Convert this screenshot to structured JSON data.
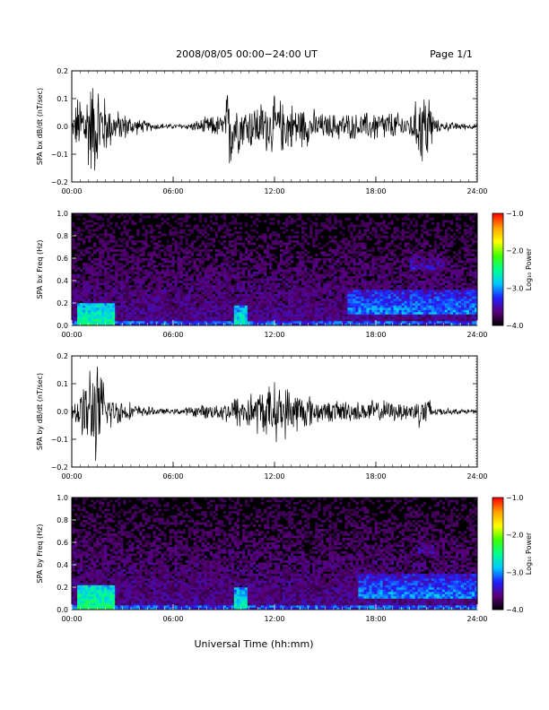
{
  "header": {
    "title": "2008/08/05  00:00−24:00 UT",
    "page": "Page 1/1"
  },
  "footer": {
    "xlabel": "Universal Time (hh:mm)"
  },
  "colorbar": {
    "label": "Log₁₀ Power",
    "ticks": [
      "−1.0",
      "−2.0",
      "−3.0",
      "−4.0"
    ],
    "range": [
      -4.0,
      -1.0
    ],
    "colors": [
      "#000000",
      "#5a007a",
      "#2020ff",
      "#00c8ff",
      "#00ff90",
      "#40ff00",
      "#ffff00",
      "#ffa000",
      "#ff0000"
    ]
  },
  "chart_data": [
    {
      "type": "line",
      "name": "waveform-bx",
      "ylabel": "SPA bx dB/dt (nT/sec)",
      "xlim": [
        "00:00",
        "24:00"
      ],
      "ylim": [
        -0.2,
        0.2
      ],
      "xticks": [
        "00:00",
        "06:00",
        "12:00",
        "18:00",
        "24:00"
      ],
      "yticks": [
        "0.2",
        "0.1",
        "0.0",
        "−0.1",
        "−0.2"
      ],
      "amplitude_envelope": {
        "x_hours": [
          0,
          0.3,
          0.6,
          1.0,
          1.3,
          1.6,
          2.0,
          2.5,
          3.0,
          4.0,
          5.0,
          6.0,
          7.0,
          8.0,
          9.0,
          9.3,
          10.0,
          11.0,
          12.0,
          13.0,
          14.0,
          15.0,
          16.0,
          17.0,
          18.0,
          19.0,
          20.0,
          21.0,
          21.5,
          22.0,
          23.0,
          24.0
        ],
        "amplitude": [
          0.02,
          0.12,
          0.15,
          0.2,
          0.2,
          0.2,
          0.12,
          0.07,
          0.06,
          0.03,
          0.015,
          0.01,
          0.015,
          0.04,
          0.05,
          0.2,
          0.09,
          0.1,
          0.12,
          0.1,
          0.08,
          0.05,
          0.06,
          0.05,
          0.07,
          0.06,
          0.05,
          0.2,
          0.03,
          0.02,
          0.015,
          0.01
        ]
      }
    },
    {
      "type": "heatmap",
      "name": "spectrogram-bx",
      "ylabel": "SPA bx Freq (Hz)",
      "xlim": [
        "00:00",
        "24:00"
      ],
      "ylim": [
        0.0,
        1.0
      ],
      "xticks": [
        "00:00",
        "06:00",
        "12:00",
        "18:00",
        "24:00"
      ],
      "yticks": [
        "1.0",
        "0.8",
        "0.6",
        "0.4",
        "0.2",
        "0.0"
      ],
      "zlim": [
        -4.0,
        -1.0
      ],
      "features": [
        {
          "x_hours": [
            0.3,
            2.5
          ],
          "freq_hz": [
            0.0,
            0.2
          ],
          "log_power": -2.5
        },
        {
          "x_hours": [
            9.6,
            10.4
          ],
          "freq_hz": [
            0.0,
            0.18
          ],
          "log_power": -2.6
        },
        {
          "x_hours": [
            16.3,
            24.0
          ],
          "freq_hz": [
            0.1,
            0.32
          ],
          "log_power": -3.0
        },
        {
          "x_hours": [
            20.0,
            22.0
          ],
          "freq_hz": [
            0.5,
            0.65
          ],
          "log_power": -3.4
        }
      ]
    },
    {
      "type": "line",
      "name": "waveform-by",
      "ylabel": "SPA by dB/dt (nT/sec)",
      "xlim": [
        "00:00",
        "24:00"
      ],
      "ylim": [
        -0.2,
        0.2
      ],
      "xticks": [
        "00:00",
        "06:00",
        "12:00",
        "18:00",
        "24:00"
      ],
      "yticks": [
        "0.2",
        "0.1",
        "0.0",
        "−0.1",
        "−0.2"
      ],
      "amplitude_envelope": {
        "x_hours": [
          0,
          0.3,
          0.6,
          1.0,
          1.3,
          1.6,
          2.0,
          2.5,
          3.0,
          4.0,
          5.0,
          6.0,
          7.0,
          8.0,
          9.0,
          10.0,
          11.0,
          12.0,
          13.0,
          14.0,
          15.0,
          16.0,
          17.0,
          18.0,
          19.0,
          20.0,
          21.0,
          21.5,
          22.0,
          23.0,
          24.0
        ],
        "amplitude": [
          0.03,
          0.08,
          0.1,
          0.2,
          0.2,
          0.2,
          0.1,
          0.06,
          0.05,
          0.025,
          0.015,
          0.01,
          0.02,
          0.03,
          0.04,
          0.08,
          0.09,
          0.12,
          0.1,
          0.07,
          0.04,
          0.05,
          0.04,
          0.05,
          0.04,
          0.04,
          0.08,
          0.02,
          0.015,
          0.01,
          0.01
        ]
      }
    },
    {
      "type": "heatmap",
      "name": "spectrogram-by",
      "ylabel": "SPA by Freq (Hz)",
      "xlim": [
        "00:00",
        "24:00"
      ],
      "ylim": [
        0.0,
        1.0
      ],
      "xticks": [
        "00:00",
        "06:00",
        "12:00",
        "18:00",
        "24:00"
      ],
      "yticks": [
        "1.0",
        "0.8",
        "0.6",
        "0.4",
        "0.2",
        "0.0"
      ],
      "zlim": [
        -4.0,
        -1.0
      ],
      "features": [
        {
          "x_hours": [
            0.3,
            2.5
          ],
          "freq_hz": [
            0.0,
            0.22
          ],
          "log_power": -2.4
        },
        {
          "x_hours": [
            9.6,
            10.4
          ],
          "freq_hz": [
            0.0,
            0.2
          ],
          "log_power": -2.6
        },
        {
          "x_hours": [
            17.0,
            24.0
          ],
          "freq_hz": [
            0.1,
            0.32
          ],
          "log_power": -3.0
        },
        {
          "x_hours": [
            20.5,
            21.5
          ],
          "freq_hz": [
            0.5,
            0.65
          ],
          "log_power": -3.5
        }
      ]
    }
  ]
}
